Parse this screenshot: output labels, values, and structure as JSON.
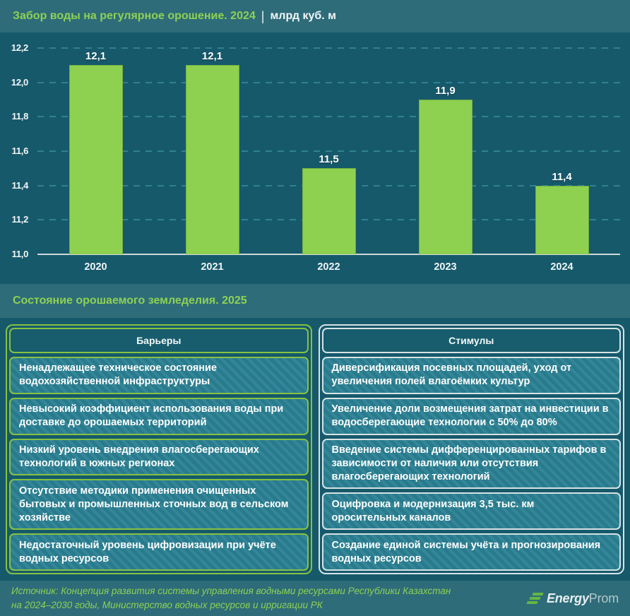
{
  "header": {
    "title_green": "Забор воды на регулярное орошение. 2024",
    "separator": "|",
    "unit": "млрд куб. м"
  },
  "chart_data": {
    "type": "bar",
    "title": "Забор воды на регулярное орошение. 2024",
    "ylabel": "млрд куб. м",
    "categories": [
      "2020",
      "2021",
      "2022",
      "2023",
      "2024"
    ],
    "values": [
      12.1,
      12.1,
      11.5,
      11.9,
      11.4
    ],
    "value_labels": [
      "12,1",
      "12,1",
      "11,5",
      "11,9",
      "11,4"
    ],
    "ylim": [
      11.0,
      12.2
    ],
    "yticks": [
      12.2,
      12.0,
      11.8,
      11.6,
      11.4,
      11.2,
      11.0
    ],
    "ytick_labels": [
      "12,2",
      "12,0",
      "11,8",
      "11,6",
      "11,4",
      "11,2",
      "11,0"
    ],
    "grid": "dashed horizontal gridlines, solid baseline",
    "legend": "none",
    "bar_color": "#8ed151",
    "background_color": "#16596b"
  },
  "section2": {
    "title": "Состояние орошаемого земледелия. 2025"
  },
  "table": {
    "columns": [
      {
        "header": "Барьеры",
        "accent": "#86c243",
        "rows": [
          "Ненадлежащее техническое состояние водохозяйственной инфраструктуры",
          "Невысокий коэффициент использования воды при доставке до орошаемых территорий",
          "Низкий уровень внедрения влагосберегающих технологий в южных регионах",
          "Отсутствие методики применения очищенных бытовых и промышленных сточных вод в сельском хозяйстве",
          "Недостаточный уровень цифровизации при учёте водных ресурсов"
        ]
      },
      {
        "header": "Стимулы",
        "accent": "#d6e2e5",
        "rows": [
          "Диверсификация посевных площадей, уход от увеличения полей влагоёмких культур",
          "Увеличение доли возмещения затрат на инвестиции в водосберегающие технологии с 50% до 80%",
          "Введение системы дифференцированных тарифов в зависимости от наличия или отсутствия влагосберегающих технологий",
          "Оцифровка и модернизация 3,5 тыс. км оросительных каналов",
          "Создание единой системы учёта и прогнозирования водных ресурсов"
        ]
      }
    ]
  },
  "footer": {
    "source_line1": "Источник: Концепция развития системы управления водными ресурсами Республики Казахстан",
    "source_line2": "на 2024–2030 годы, Министерство водных ресурсов и ирригации РК",
    "logo": {
      "icon": "energyprom-stripes-icon",
      "text_bold": "Energy",
      "text_light": "Prom"
    }
  }
}
